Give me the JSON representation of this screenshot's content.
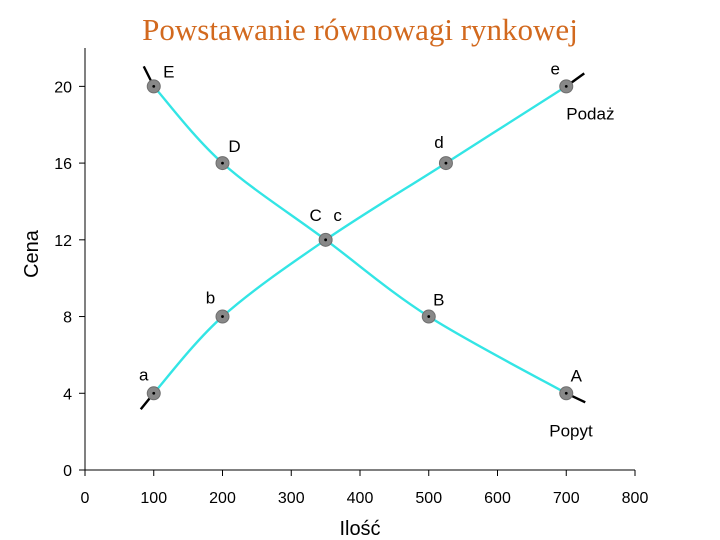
{
  "chart_data": {
    "type": "line",
    "title": "Powstawanie równowagi rynkowej",
    "xlabel": "Ilość",
    "ylabel": "Cena",
    "xlim": [
      0,
      800
    ],
    "ylim": [
      0,
      22
    ],
    "x_ticks": [
      0,
      100,
      200,
      300,
      400,
      500,
      600,
      700,
      800
    ],
    "y_ticks": [
      0,
      4,
      8,
      12,
      16,
      20
    ],
    "grid": false,
    "colors": {
      "curve": "#33e5e5",
      "marker": "#888888",
      "tail": "#000000"
    },
    "series": [
      {
        "name": "Popyt",
        "points": [
          {
            "label": "E",
            "x": 100,
            "y": 20
          },
          {
            "label": "D",
            "x": 200,
            "y": 16
          },
          {
            "label": "C",
            "x": 350,
            "y": 12
          },
          {
            "label": "B",
            "x": 500,
            "y": 8
          },
          {
            "label": "A",
            "x": 700,
            "y": 4
          }
        ]
      },
      {
        "name": "Podaż",
        "points": [
          {
            "label": "a",
            "x": 100,
            "y": 4
          },
          {
            "label": "b",
            "x": 200,
            "y": 8
          },
          {
            "label": "c",
            "x": 350,
            "y": 12
          },
          {
            "label": "d",
            "x": 525,
            "y": 16
          },
          {
            "label": "e",
            "x": 700,
            "y": 20
          }
        ]
      }
    ]
  }
}
